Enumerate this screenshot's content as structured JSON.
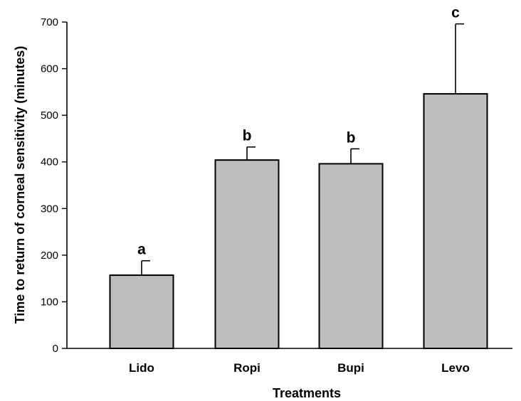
{
  "chart_data": {
    "type": "bar",
    "title": "",
    "xlabel": "Treatments",
    "ylabel": "Time  to return of corneal sensitivity (minutes)",
    "categories": [
      "Lido",
      "Ropi",
      "Bupi",
      "Levo"
    ],
    "values": [
      157,
      404,
      396,
      546
    ],
    "error_upper": [
      31,
      28,
      32,
      150
    ],
    "significance_labels": [
      "a",
      "b",
      "b",
      "c"
    ],
    "ylim": [
      0,
      700
    ],
    "yticks": [
      0,
      100,
      200,
      300,
      400,
      500,
      600,
      700
    ],
    "grid": false,
    "bar_color": "#bebebe",
    "edge_color": "#000000"
  }
}
